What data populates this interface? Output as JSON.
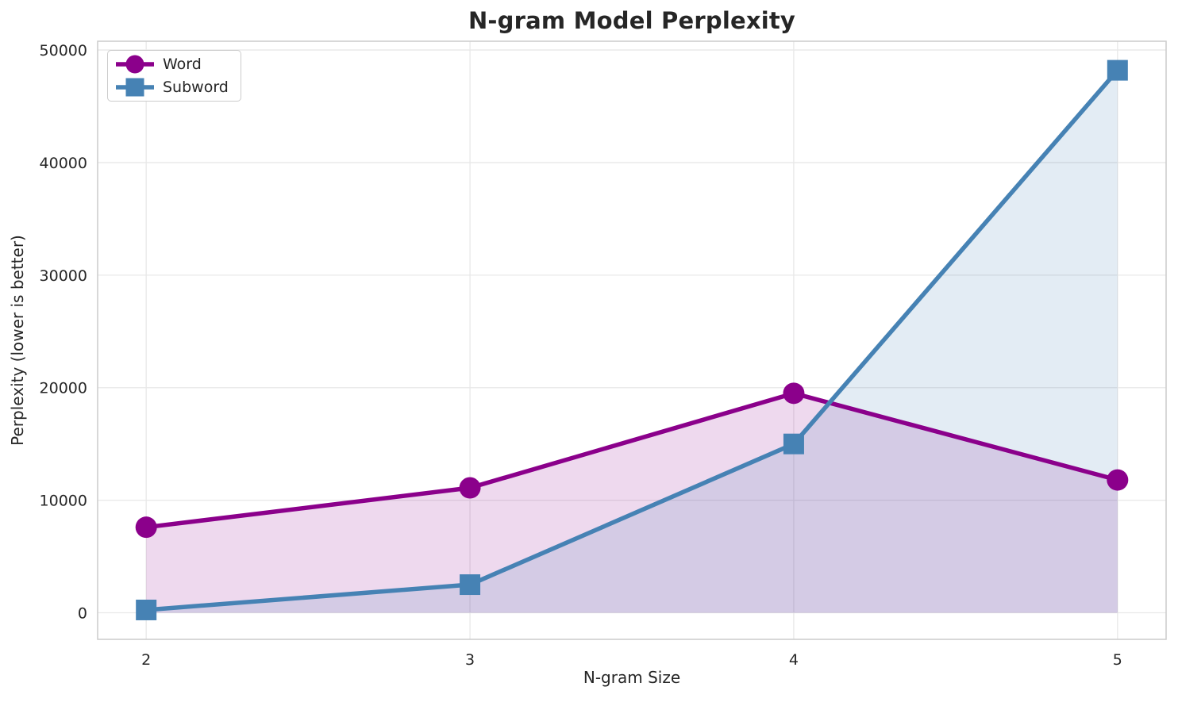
{
  "chart_data": {
    "type": "line",
    "title": "N-gram Model Perplexity",
    "xlabel": "N-gram Size",
    "ylabel": "Perplexity (lower is better)",
    "x": [
      2,
      3,
      4,
      5
    ],
    "series": [
      {
        "name": "Word",
        "color": "#8B008B",
        "marker": "circle",
        "values": [
          7600,
          11100,
          19500,
          11800
        ]
      },
      {
        "name": "Subword",
        "color": "#4682B4",
        "marker": "square",
        "values": [
          250,
          2500,
          15000,
          48200
        ]
      }
    ],
    "fill_to_zero": true,
    "fill_opacity": 0.15,
    "xticks": [
      2,
      3,
      4,
      5
    ],
    "xtick_labels": [
      "2",
      "3",
      "4",
      "5"
    ],
    "yticks": [
      0,
      10000,
      20000,
      30000,
      40000,
      50000
    ],
    "ytick_labels": [
      "0",
      "10000",
      "20000",
      "30000",
      "40000",
      "50000"
    ],
    "xlim": [
      1.85,
      5.15
    ],
    "ylim": [
      -2360,
      50780
    ],
    "grid": true,
    "legend": {
      "position": "upper left",
      "labels": [
        "Word",
        "Subword"
      ]
    },
    "colors": {
      "grid": "#E8E8E8",
      "spine": "#CCCCCC",
      "text": "#262626",
      "background": "#FFFFFF"
    }
  }
}
